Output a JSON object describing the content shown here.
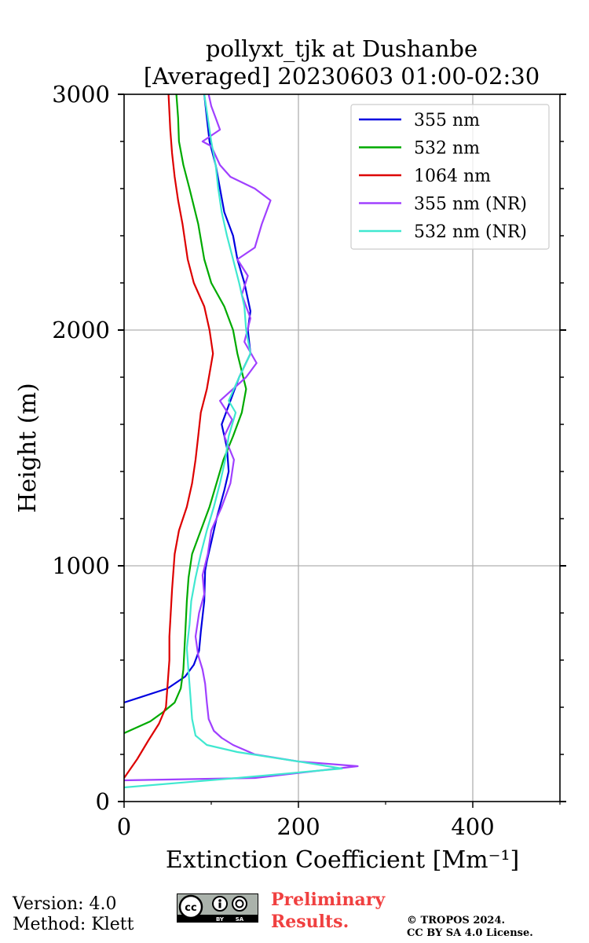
{
  "chart_data": {
    "type": "line",
    "title_line1": "pollyxt_tjk at Dushanbe",
    "title_line2": "[Averaged] 20230603 01:00-02:30",
    "xlabel": "Extinction Coefficient",
    "xlabel_unit": "[Mm⁻¹]",
    "ylabel": "Height (m)",
    "xlim": [
      0,
      500
    ],
    "ylim": [
      0,
      3000
    ],
    "xticks": [
      0,
      200,
      400
    ],
    "yticks": [
      0,
      1000,
      2000,
      3000
    ],
    "grid": true,
    "legend_position": "top-right",
    "series": [
      {
        "name": "355 nm",
        "color": "#0000e0",
        "points": [
          [
            0,
            420
          ],
          [
            50,
            480
          ],
          [
            70,
            530
          ],
          [
            80,
            580
          ],
          [
            86,
            640
          ],
          [
            88,
            720
          ],
          [
            92,
            850
          ],
          [
            93,
            980
          ],
          [
            95,
            1020
          ],
          [
            100,
            1100
          ],
          [
            106,
            1200
          ],
          [
            115,
            1320
          ],
          [
            120,
            1400
          ],
          [
            118,
            1500
          ],
          [
            112,
            1600
          ],
          [
            122,
            1700
          ],
          [
            132,
            1800
          ],
          [
            145,
            1900
          ],
          [
            142,
            2000
          ],
          [
            145,
            2080
          ],
          [
            138,
            2200
          ],
          [
            130,
            2300
          ],
          [
            125,
            2400
          ],
          [
            115,
            2500
          ],
          [
            110,
            2600
          ],
          [
            105,
            2700
          ],
          [
            98,
            2800
          ],
          [
            95,
            2900
          ],
          [
            92,
            3000
          ]
        ]
      },
      {
        "name": "532 nm",
        "color": "#00aa00",
        "points": [
          [
            0,
            290
          ],
          [
            30,
            340
          ],
          [
            45,
            380
          ],
          [
            58,
            420
          ],
          [
            65,
            480
          ],
          [
            68,
            560
          ],
          [
            70,
            700
          ],
          [
            72,
            850
          ],
          [
            74,
            950
          ],
          [
            78,
            1050
          ],
          [
            88,
            1150
          ],
          [
            98,
            1250
          ],
          [
            106,
            1350
          ],
          [
            114,
            1450
          ],
          [
            125,
            1550
          ],
          [
            135,
            1650
          ],
          [
            140,
            1750
          ],
          [
            130,
            1900
          ],
          [
            125,
            2000
          ],
          [
            115,
            2100
          ],
          [
            100,
            2200
          ],
          [
            92,
            2300
          ],
          [
            85,
            2450
          ],
          [
            75,
            2600
          ],
          [
            68,
            2700
          ],
          [
            63,
            2800
          ],
          [
            62,
            2900
          ],
          [
            60,
            3000
          ]
        ]
      },
      {
        "name": "1064 nm",
        "color": "#dd0000",
        "points": [
          [
            0,
            100
          ],
          [
            15,
            180
          ],
          [
            28,
            260
          ],
          [
            40,
            330
          ],
          [
            48,
            400
          ],
          [
            50,
            500
          ],
          [
            52,
            600
          ],
          [
            52,
            700
          ],
          [
            55,
            900
          ],
          [
            58,
            1050
          ],
          [
            63,
            1150
          ],
          [
            72,
            1250
          ],
          [
            78,
            1350
          ],
          [
            82,
            1450
          ],
          [
            85,
            1550
          ],
          [
            88,
            1650
          ],
          [
            95,
            1750
          ],
          [
            102,
            1900
          ],
          [
            98,
            2000
          ],
          [
            92,
            2100
          ],
          [
            80,
            2200
          ],
          [
            73,
            2300
          ],
          [
            67,
            2450
          ],
          [
            62,
            2550
          ],
          [
            58,
            2650
          ],
          [
            55,
            2750
          ],
          [
            53,
            2850
          ],
          [
            51,
            3000
          ]
        ]
      },
      {
        "name": "355 nm (NR)",
        "color": "#a040ff",
        "points": [
          [
            0,
            90
          ],
          [
            150,
            100
          ],
          [
            268,
            150
          ],
          [
            200,
            170
          ],
          [
            150,
            200
          ],
          [
            125,
            240
          ],
          [
            112,
            270
          ],
          [
            103,
            300
          ],
          [
            97,
            350
          ],
          [
            95,
            420
          ],
          [
            93,
            500
          ],
          [
            90,
            560
          ],
          [
            85,
            620
          ],
          [
            82,
            700
          ],
          [
            86,
            800
          ],
          [
            92,
            880
          ],
          [
            90,
            960
          ],
          [
            96,
            1050
          ],
          [
            100,
            1150
          ],
          [
            112,
            1250
          ],
          [
            122,
            1350
          ],
          [
            126,
            1450
          ],
          [
            115,
            1550
          ],
          [
            124,
            1620
          ],
          [
            110,
            1700
          ],
          [
            140,
            1800
          ],
          [
            152,
            1860
          ],
          [
            138,
            1950
          ],
          [
            145,
            2050
          ],
          [
            135,
            2150
          ],
          [
            142,
            2230
          ],
          [
            130,
            2300
          ],
          [
            150,
            2350
          ],
          [
            158,
            2450
          ],
          [
            168,
            2550
          ],
          [
            150,
            2600
          ],
          [
            122,
            2650
          ],
          [
            110,
            2700
          ],
          [
            100,
            2780
          ],
          [
            90,
            2800
          ],
          [
            110,
            2850
          ],
          [
            105,
            2900
          ],
          [
            100,
            2950
          ],
          [
            97,
            3000
          ]
        ]
      },
      {
        "name": "532 nm (NR)",
        "color": "#40e8d0",
        "points": [
          [
            0,
            60
          ],
          [
            130,
            100
          ],
          [
            250,
            140
          ],
          [
            200,
            170
          ],
          [
            130,
            210
          ],
          [
            95,
            240
          ],
          [
            82,
            280
          ],
          [
            78,
            350
          ],
          [
            76,
            450
          ],
          [
            74,
            550
          ],
          [
            72,
            650
          ],
          [
            75,
            750
          ],
          [
            77,
            850
          ],
          [
            82,
            950
          ],
          [
            88,
            1050
          ],
          [
            95,
            1150
          ],
          [
            103,
            1250
          ],
          [
            110,
            1350
          ],
          [
            116,
            1450
          ],
          [
            120,
            1550
          ],
          [
            128,
            1650
          ],
          [
            120,
            1700
          ],
          [
            132,
            1800
          ],
          [
            145,
            1900
          ],
          [
            140,
            2000
          ],
          [
            138,
            2100
          ],
          [
            132,
            2200
          ],
          [
            125,
            2300
          ],
          [
            118,
            2400
          ],
          [
            112,
            2500
          ],
          [
            108,
            2600
          ],
          [
            105,
            2700
          ],
          [
            100,
            2800
          ],
          [
            96,
            2900
          ],
          [
            92,
            3000
          ]
        ]
      }
    ]
  },
  "footer": {
    "version": "Version: 4.0",
    "method": "Method: Klett",
    "preliminary_line1": "Preliminary",
    "preliminary_line2": "Results.",
    "copyright_line1": "© TROPOS 2024.",
    "copyright_line2": "CC BY SA 4.0 License.",
    "cc_badge": "cc-by-sa-icon"
  }
}
